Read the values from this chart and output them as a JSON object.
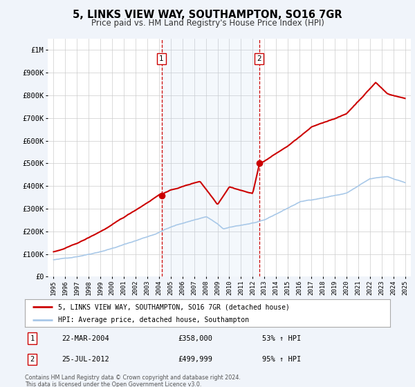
{
  "title": "5, LINKS VIEW WAY, SOUTHAMPTON, SO16 7GR",
  "subtitle": "Price paid vs. HM Land Registry's House Price Index (HPI)",
  "bg_color": "#f0f4fa",
  "plot_bg_color": "#ffffff",
  "grid_color": "#cccccc",
  "hpi_color": "#a8c8e8",
  "price_color": "#cc0000",
  "sale1_date_num": 2004.22,
  "sale1_price": 358000,
  "sale2_date_num": 2012.56,
  "sale2_price": 499999,
  "ylabel_ticks": [
    0,
    100000,
    200000,
    300000,
    400000,
    500000,
    600000,
    700000,
    800000,
    900000,
    1000000
  ],
  "ylabel_labels": [
    "£0",
    "£100K",
    "£200K",
    "£300K",
    "£400K",
    "£500K",
    "£600K",
    "£700K",
    "£800K",
    "£900K",
    "£1M"
  ],
  "xlim": [
    1994.5,
    2025.5
  ],
  "ylim": [
    0,
    1050000
  ],
  "legend_line1": "5, LINKS VIEW WAY, SOUTHAMPTON, SO16 7GR (detached house)",
  "legend_line2": "HPI: Average price, detached house, Southampton",
  "footer1": "Contains HM Land Registry data © Crown copyright and database right 2024.",
  "footer2": "This data is licensed under the Open Government Licence v3.0."
}
